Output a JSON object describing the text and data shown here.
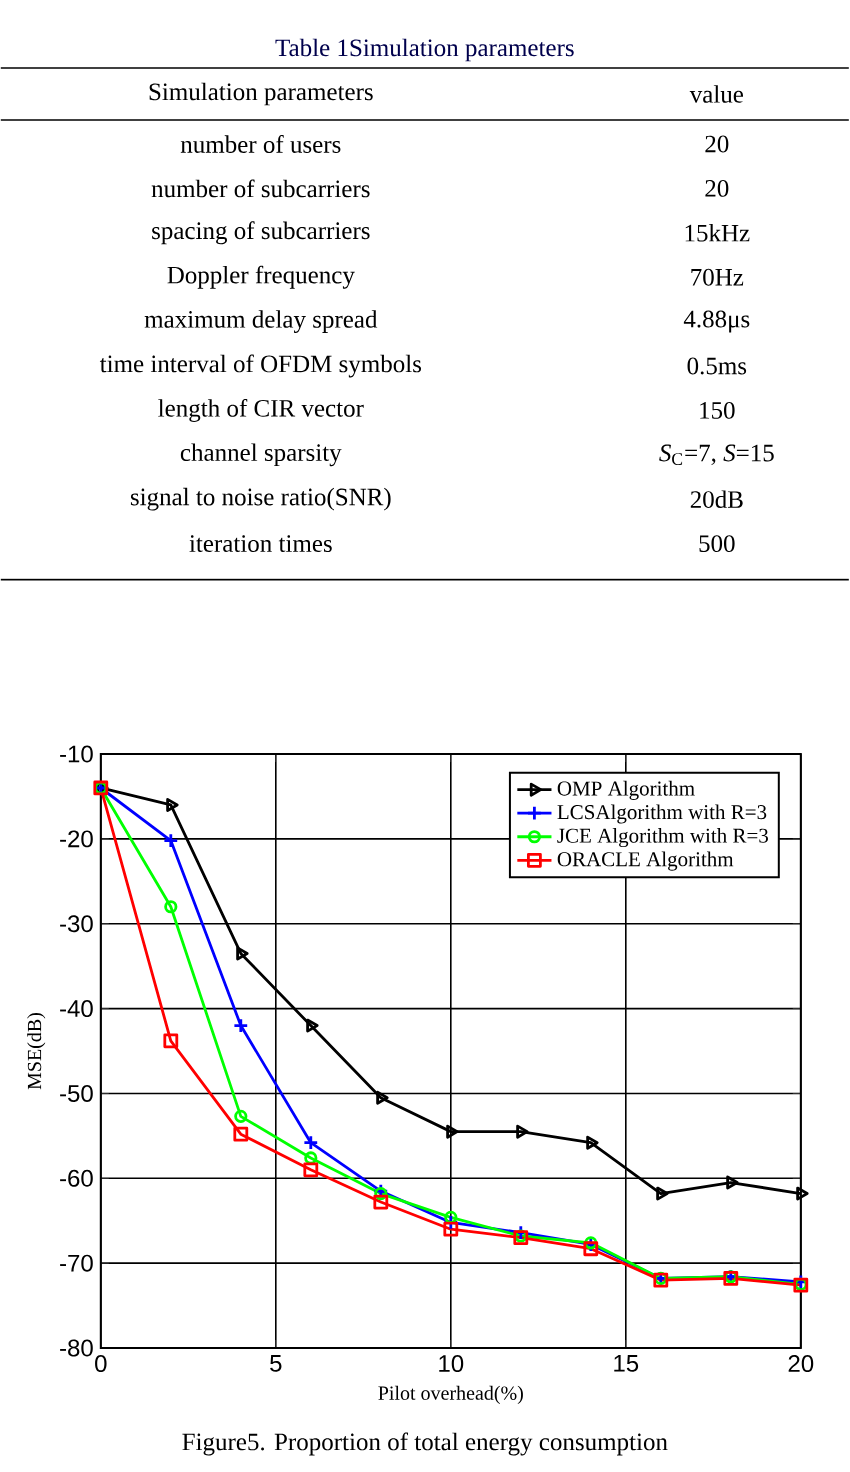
{
  "chart_data": [
    {
      "type": "other",
      "title": "Table 1Simulation parameters",
      "annotations": [
        "Simulation parameters",
        "value",
        "number of users",
        "20",
        "number of subcarriers",
        "20",
        "spacing of subcarriers",
        "15kHz",
        "Doppler frequency",
        "70Hz",
        "maximum delay spread",
        "4.88μs",
        "time interval of OFDM symbols",
        "0.5ms",
        "length of CIR vector",
        "150",
        "channel sparsity",
        "*S*$_{C}$=7, *S*=15",
        "signal to noise ratio(SNR)",
        "20dB",
        "iteration times",
        "500"
      ]
    },
    {
      "type": "line",
      "xlabel": "Pilot overhead(%)",
      "ylabel": "MSE(dB)",
      "annotations": [
        "Figure5. Proportion of total energy consumption"
      ],
      "x": [
        0,
        2,
        4,
        6,
        8,
        10,
        12,
        14,
        16,
        18,
        20
      ],
      "xlim": [
        0,
        20
      ],
      "xticks": [
        0,
        5,
        10,
        15,
        20
      ],
      "ylim": [
        -80,
        -10
      ],
      "yticks": [
        -80,
        -70,
        -60,
        -50,
        -40,
        -30,
        -20,
        -10
      ],
      "grid": true,
      "legend": "top right",
      "series": [
        {
          "name": "OMP Algorithm",
          "color": "#000000",
          "marker": "triangle",
          "values": [
            -14,
            -16,
            -33.5,
            -42,
            -50.5,
            -54.5,
            -54.5,
            -55.8,
            -61.8,
            -60.5,
            -61.8
          ]
        },
        {
          "name": "LCSAlgorithm with R=3",
          "color": "#0000ff",
          "marker": "cross",
          "values": [
            -14,
            -20.2,
            -42,
            -55.8,
            -61.5,
            -65.2,
            -66.4,
            -67.8,
            -71.8,
            -71.6,
            -72.2
          ]
        },
        {
          "name": "JCE Algorithm with R=3",
          "color": "#00ff00",
          "marker": "circle",
          "values": [
            -14,
            -28,
            -52.7,
            -57.6,
            -61.8,
            -64.6,
            -66.8,
            -67.6,
            -71.8,
            -71.6,
            -72.5
          ]
        },
        {
          "name": "ORACLE Algorithm",
          "color": "#ff0000",
          "marker": "square",
          "values": [
            -14,
            -43.8,
            -54.8,
            -59,
            -62.8,
            -66,
            -67,
            -68.3,
            -72,
            -71.8,
            -72.6
          ]
        }
      ]
    }
  ]
}
